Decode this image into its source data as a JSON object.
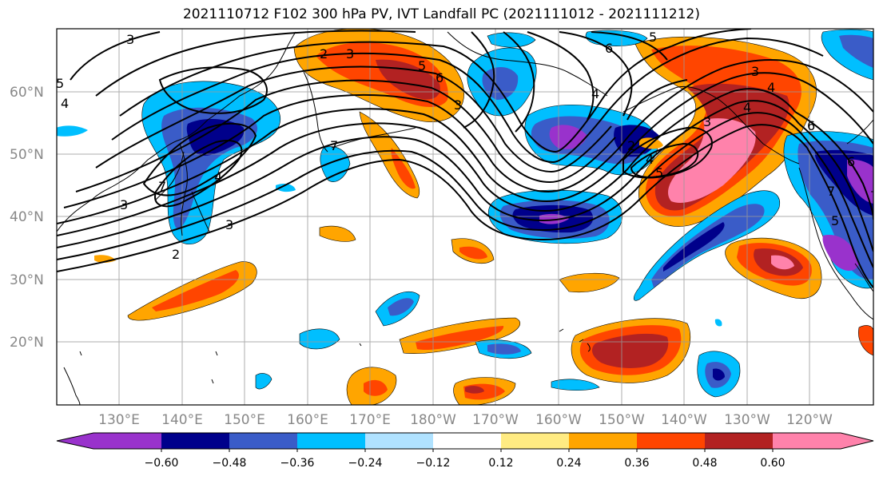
{
  "title": "2021110712 F102 300 hPa PV, IVT Landfall PC (2021111012 - 2021111212)",
  "map": {
    "lat_labels": [
      "60°N",
      "50°N",
      "40°N",
      "30°N",
      "20°N"
    ],
    "lon_labels": [
      "130°E",
      "140°E",
      "150°E",
      "160°E",
      "170°E",
      "180°W",
      "170°W",
      "160°W",
      "150°W",
      "140°W",
      "130°W",
      "120°W"
    ],
    "contour_labels": [
      "3",
      "2",
      "3",
      "6",
      "5",
      "3",
      "6",
      "5",
      "4",
      "7",
      "4",
      "5",
      "4",
      "3",
      "2",
      "3",
      "7",
      "5",
      "4",
      "2",
      "3",
      "4",
      "6",
      "6",
      "7",
      "5",
      "4",
      "3"
    ]
  },
  "colorbar": {
    "tick_labels": [
      "−0.60",
      "−0.48",
      "−0.36",
      "−0.24",
      "−0.12",
      "0.12",
      "0.24",
      "0.36",
      "0.48",
      "0.60"
    ],
    "colors": [
      "#9932CC",
      "#00008B",
      "#3A5CC8",
      "#00BFFF",
      "#B0E2FF",
      "#FFFFFF",
      "#FFEB82",
      "#FFA500",
      "#FF4500",
      "#B22222",
      "#FF82AB"
    ]
  }
}
